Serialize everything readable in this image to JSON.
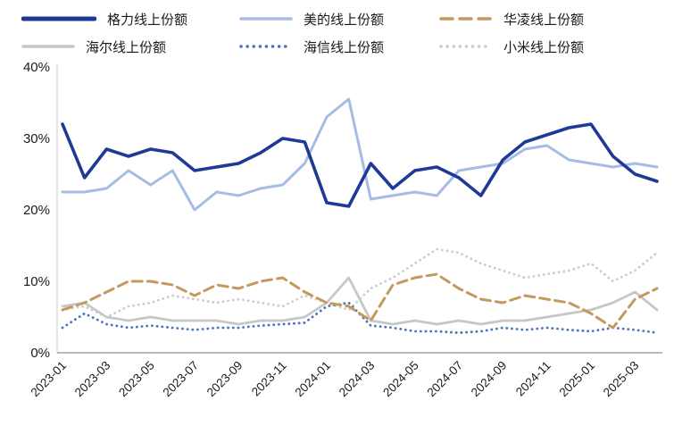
{
  "chart_data": {
    "type": "line",
    "title": "",
    "legend_position": "top",
    "grid": false,
    "background": "#ffffff",
    "axis_color": "#8f8f8f",
    "left_axis_color": "#cfcfcf",
    "text_color": "#1a1a1a",
    "ylim": [
      0,
      40
    ],
    "ytick_values": [
      0,
      10,
      20,
      30,
      40
    ],
    "ytick_labels": [
      "0%",
      "10%",
      "20%",
      "30%",
      "40%"
    ],
    "x": [
      "2023-01",
      "2023-02",
      "2023-03",
      "2023-04",
      "2023-05",
      "2023-06",
      "2023-07",
      "2023-08",
      "2023-09",
      "2023-10",
      "2023-11",
      "2023-12",
      "2024-01",
      "2024-02",
      "2024-03",
      "2024-04",
      "2024-05",
      "2024-06",
      "2024-07",
      "2024-08",
      "2024-09",
      "2024-10",
      "2024-11",
      "2024-12",
      "2025-01",
      "2025-02",
      "2025-03",
      "2025-04"
    ],
    "xtick_labels": [
      "2023-01",
      "2023-03",
      "2023-05",
      "2023-07",
      "2023-09",
      "2023-11",
      "2024-01",
      "2024-03",
      "2024-05",
      "2024-07",
      "2024-09",
      "2024-11",
      "2025-01",
      "2025-03"
    ],
    "series": [
      {
        "name": "格力线上份额",
        "color": "#1e3a96",
        "style": "solid",
        "width": 3.6,
        "values": [
          32,
          24.5,
          28.5,
          27.5,
          28.5,
          28,
          25.5,
          26,
          26.5,
          28,
          30,
          29.5,
          21,
          20.5,
          26.5,
          23,
          25.5,
          26,
          24.5,
          22,
          27,
          29.5,
          30.5,
          31.5,
          32,
          27.5,
          25,
          24
        ]
      },
      {
        "name": "美的线上份额",
        "color": "#a6bce7",
        "style": "solid",
        "width": 3,
        "values": [
          22.5,
          22.5,
          23,
          25.5,
          23.5,
          25.5,
          20,
          22.5,
          22,
          23,
          23.5,
          26.5,
          33,
          35.5,
          21.5,
          22,
          22.5,
          22,
          25.5,
          26,
          26.5,
          28.5,
          29,
          27,
          26.5,
          26,
          26.5,
          26
        ]
      },
      {
        "name": "华凌线上份额",
        "color": "#c39a5e",
        "style": "dashed",
        "width": 3,
        "values": [
          6,
          7,
          8.5,
          10,
          10,
          9.5,
          8,
          9.5,
          9,
          10,
          10.5,
          8.5,
          7,
          6.5,
          4.5,
          9.5,
          10.5,
          11,
          9,
          7.5,
          7,
          8,
          7.5,
          7,
          5.5,
          3.5,
          7.5,
          9
        ]
      },
      {
        "name": "海尔线上份额",
        "color": "#c7c7c7",
        "style": "solid",
        "width": 2.8,
        "values": [
          6.5,
          7,
          5,
          4.5,
          5,
          4.5,
          4.5,
          4.5,
          4,
          4.5,
          4.5,
          5,
          7,
          10.5,
          4.5,
          4,
          4.5,
          4,
          4.5,
          4,
          4.5,
          4.5,
          5,
          5.5,
          6,
          7,
          8.5,
          6
        ]
      },
      {
        "name": "海信线上份额",
        "color": "#4c70bd",
        "style": "dotted",
        "width": 2.8,
        "values": [
          3.5,
          5.5,
          4,
          3.5,
          3.8,
          3.5,
          3.2,
          3.5,
          3.5,
          3.8,
          4,
          4.2,
          6.5,
          7,
          3.8,
          3.5,
          3,
          3,
          2.8,
          3,
          3.5,
          3.2,
          3.5,
          3.2,
          3,
          3.5,
          3.2,
          2.8
        ]
      },
      {
        "name": "小米线上份额",
        "color": "#cccccc",
        "style": "dotted",
        "width": 2.8,
        "values": [
          6,
          6.5,
          5,
          6.5,
          7,
          8,
          7.5,
          7,
          7.5,
          7,
          6.5,
          8,
          7,
          6,
          9,
          10.5,
          12.5,
          14.5,
          14,
          12.5,
          11.5,
          10.5,
          11,
          11.5,
          12.5,
          10,
          11.5,
          14
        ]
      }
    ]
  }
}
